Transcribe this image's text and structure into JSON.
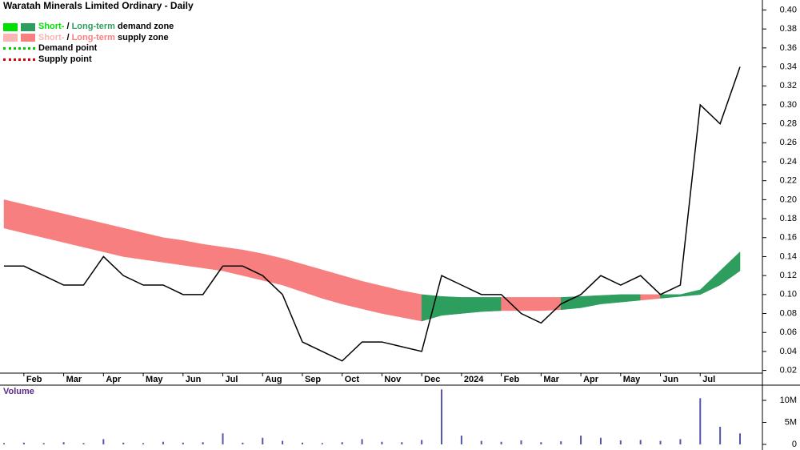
{
  "chart_data": [
    {
      "type": "line",
      "title": "Waratah Minerals Limited Ordinary - Daily",
      "color": "#000000",
      "supply_color": "#f77f7f",
      "demand_color": "#2e9e5e",
      "categories": [
        null,
        "Feb",
        null,
        "Mar",
        null,
        "Apr",
        null,
        "May",
        null,
        "Jun",
        null,
        "Jul",
        null,
        "Aug",
        null,
        "Sep",
        null,
        "Oct",
        null,
        "Nov",
        null,
        "Dec",
        null,
        "2024",
        null,
        "Feb",
        null,
        "Mar",
        null,
        "Apr",
        null,
        "May",
        null,
        "Jun",
        null,
        "Jul",
        null,
        null
      ],
      "values": [
        0.13,
        0.13,
        0.12,
        0.11,
        0.11,
        0.14,
        0.12,
        0.11,
        0.11,
        0.1,
        0.1,
        0.13,
        0.13,
        0.12,
        0.1,
        0.05,
        0.04,
        0.03,
        0.05,
        0.05,
        0.045,
        0.04,
        0.12,
        0.11,
        0.1,
        0.1,
        0.08,
        0.07,
        0.09,
        0.1,
        0.12,
        0.11,
        0.12,
        0.1,
        0.11,
        0.3,
        0.28,
        0.34
      ],
      "zone": {
        "upper": [
          0.2,
          0.195,
          0.19,
          0.185,
          0.18,
          0.175,
          0.17,
          0.165,
          0.16,
          0.157,
          0.153,
          0.15,
          0.147,
          0.143,
          0.138,
          0.132,
          0.126,
          0.12,
          0.114,
          0.109,
          0.104,
          0.1,
          0.098,
          0.097,
          0.097,
          0.097,
          0.097,
          0.097,
          0.097,
          0.098,
          0.099,
          0.1,
          0.1,
          0.1,
          0.1,
          0.105,
          0.125,
          0.145
        ],
        "lower": [
          0.17,
          0.165,
          0.16,
          0.155,
          0.15,
          0.145,
          0.14,
          0.137,
          0.134,
          0.131,
          0.128,
          0.125,
          0.12,
          0.115,
          0.11,
          0.103,
          0.096,
          0.09,
          0.085,
          0.08,
          0.076,
          0.072,
          0.078,
          0.08,
          0.082,
          0.083,
          0.083,
          0.083,
          0.084,
          0.086,
          0.09,
          0.092,
          0.094,
          0.096,
          0.098,
          0.1,
          0.11,
          0.125
        ]
      },
      "ylim": [
        0.007,
        0.408
      ],
      "yticks": [
        0.02,
        0.04,
        0.06,
        0.08,
        {
          "value": 0.1,
          "label": "0.10"
        },
        0.12,
        0.14,
        0.16,
        0.18,
        {
          "value": 0.2,
          "label": "0.20"
        },
        0.22,
        0.24,
        0.26,
        0.28,
        {
          "value": 0.3,
          "label": "0.30"
        },
        0.32,
        0.34,
        0.36,
        0.38,
        {
          "value": 0.4,
          "label": "0.40"
        }
      ],
      "legend": [
        {
          "parts": [
            "Short-",
            " / ",
            "Long-term",
            " demand zone"
          ],
          "colors": [
            "#00e000",
            "#2e9e5e"
          ]
        },
        {
          "parts": [
            "Short-",
            " / ",
            "Long-term",
            " supply zone"
          ],
          "colors": [
            "#f7b5b5",
            "#f77f7f"
          ]
        },
        {
          "parts": [
            "Demand point"
          ],
          "colors": [
            "#00cc00"
          ]
        },
        {
          "parts": [
            "Supply point"
          ],
          "colors": [
            "#dd0000"
          ]
        }
      ]
    },
    {
      "type": "bar",
      "title": "Volume",
      "color": "#5555aa",
      "values": [
        300000,
        400000,
        300000,
        500000,
        300000,
        1200000,
        400000,
        300000,
        600000,
        400000,
        500000,
        2500000,
        400000,
        1500000,
        800000,
        400000,
        300000,
        500000,
        1200000,
        600000,
        500000,
        1000000,
        12500000,
        2000000,
        800000,
        600000,
        900000,
        500000,
        700000,
        2000000,
        1500000,
        900000,
        1000000,
        800000,
        1200000,
        10500000,
        4000000,
        2500000
      ],
      "ylim": [
        0,
        13100000
      ],
      "yticks": [
        0,
        {
          "value": 5000000,
          "label": "5M"
        },
        {
          "value": 10000000,
          "label": "10M"
        }
      ]
    }
  ]
}
